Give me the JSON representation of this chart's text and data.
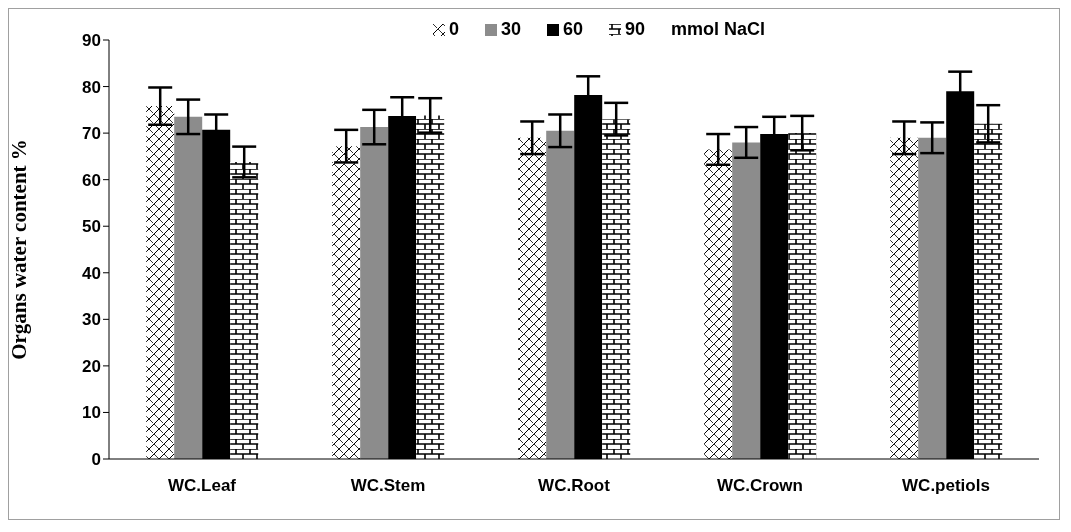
{
  "chart_data": {
    "type": "bar",
    "ylabel": "Organs water content %",
    "legend_title": "mmol NaCl",
    "legend": "top",
    "grid": false,
    "categories": [
      "WC.Leaf",
      "WC.Stem",
      "WC.Root",
      "WC.Crown",
      "WC.petiols"
    ],
    "ylim": [
      0,
      90
    ],
    "yticks": [
      0,
      10,
      20,
      30,
      40,
      50,
      60,
      70,
      80,
      90
    ],
    "series": [
      {
        "name": "0",
        "color": "#000000",
        "values": [
          75.8,
          67.2,
          69,
          66.5,
          69
        ],
        "errors": [
          4,
          3.5,
          3.5,
          3.3,
          3.5
        ]
      },
      {
        "name": "30",
        "color": "#8c8c8c",
        "values": [
          73.5,
          71.3,
          70.5,
          68,
          69
        ],
        "errors": [
          3.7,
          3.7,
          3.5,
          3.3,
          3.3
        ]
      },
      {
        "name": "60",
        "color": "#000000",
        "values": [
          70.7,
          73.7,
          78.2,
          69.8,
          79
        ],
        "errors": [
          3.3,
          4,
          4,
          3.7,
          4.2
        ]
      },
      {
        "name": "90",
        "color": "#000000",
        "values": [
          63.8,
          73.8,
          73,
          70,
          72
        ],
        "errors": [
          3.3,
          3.7,
          3.5,
          3.7,
          4
        ]
      }
    ]
  }
}
